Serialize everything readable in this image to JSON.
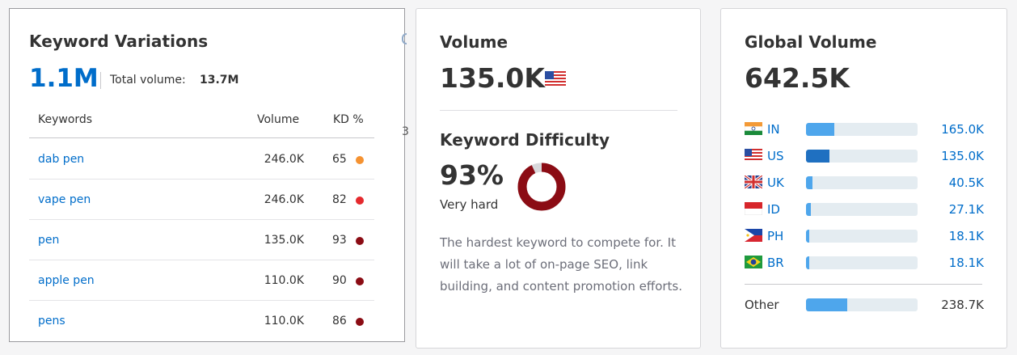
{
  "keyword_variations": {
    "title": "Keyword Variations",
    "count": "1.1M",
    "total_volume_label": "Total volume:",
    "total_volume_value": "13.7M",
    "columns": {
      "keywords": "Keywords",
      "volume": "Volume",
      "kd": "KD %"
    },
    "edge_glyph": "3",
    "rows": [
      {
        "keyword": "dab pen",
        "volume": "246.0K",
        "kd": "65",
        "dot_color": "#f59231"
      },
      {
        "keyword": "vape pen",
        "volume": "246.0K",
        "kd": "82",
        "dot_color": "#e5292d"
      },
      {
        "keyword": "pen",
        "volume": "135.0K",
        "kd": "93",
        "dot_color": "#8b0c14"
      },
      {
        "keyword": "apple pen",
        "volume": "110.0K",
        "kd": "90",
        "dot_color": "#8b0c14"
      },
      {
        "keyword": "pens",
        "volume": "110.0K",
        "kd": "86",
        "dot_color": "#8b0c14"
      }
    ]
  },
  "volume": {
    "title": "Volume",
    "value": "135.0K",
    "flag_icon": "us-flag-icon"
  },
  "keyword_difficulty": {
    "title": "Keyword Difficulty",
    "value": "93%",
    "percent": 93,
    "label": "Very hard",
    "donut_color": "#8b0c14",
    "donut_track_color": "#d9d9dc",
    "description": "The hardest keyword to compete for. It will take a lot of on-page SEO, link building, and content promotion efforts."
  },
  "global_volume": {
    "title": "Global Volume",
    "value": "642.5K",
    "countries": [
      {
        "code": "IN",
        "value": "165.0K",
        "share": 0.25,
        "bar_color": "#4ea6ec",
        "flag_icon": "india-flag-icon"
      },
      {
        "code": "US",
        "value": "135.0K",
        "share": 0.21,
        "bar_color": "#1f70c1",
        "flag_icon": "us-flag-icon"
      },
      {
        "code": "UK",
        "value": "40.5K",
        "share": 0.06,
        "bar_color": "#4ea6ec",
        "flag_icon": "uk-flag-icon"
      },
      {
        "code": "ID",
        "value": "27.1K",
        "share": 0.04,
        "bar_color": "#4ea6ec",
        "flag_icon": "indonesia-flag-icon"
      },
      {
        "code": "PH",
        "value": "18.1K",
        "share": 0.03,
        "bar_color": "#4ea6ec",
        "flag_icon": "philippines-flag-icon"
      },
      {
        "code": "BR",
        "value": "18.1K",
        "share": 0.03,
        "bar_color": "#4ea6ec",
        "flag_icon": "brazil-flag-icon"
      }
    ],
    "other": {
      "label": "Other",
      "value": "238.7K",
      "share": 0.37,
      "bar_color": "#4ea6ec"
    }
  }
}
